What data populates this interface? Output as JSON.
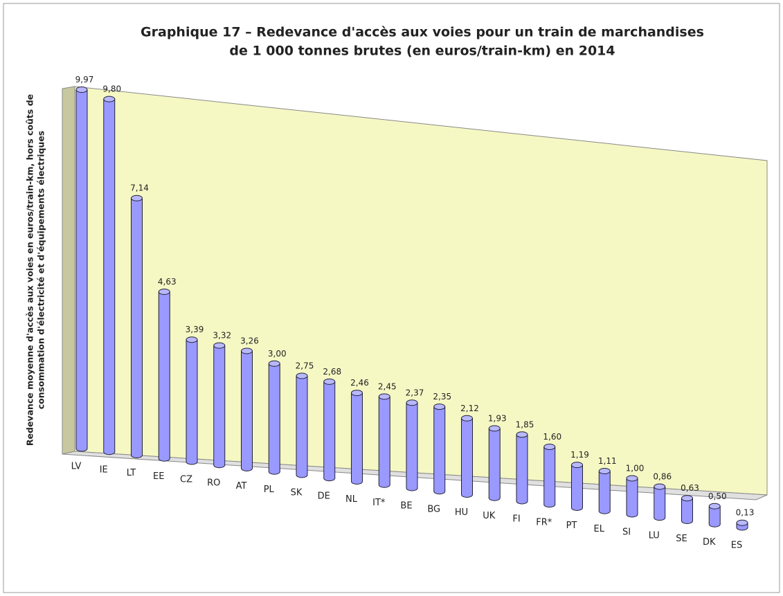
{
  "chart_data": {
    "type": "bar3d",
    "title": [
      "Graphique 17 – Redevance d'accès aux voies pour un train de marchandises",
      "de 1 000 tonnes brutes (en euros/train-km) en 2014"
    ],
    "y_label": [
      "Redevance moyenne d'accès aux voies en euros/train-km, hors coûts de",
      "consommation d'électricité et d'équipements électriques"
    ],
    "categories": [
      "LV",
      "IE",
      "LT",
      "EE",
      "CZ",
      "RO",
      "AT",
      "PL",
      "SK",
      "DE",
      "NL",
      "IT*",
      "BE",
      "BG",
      "HU",
      "UK",
      "FI",
      "FR*",
      "PT",
      "EL",
      "SI",
      "LU",
      "SE",
      "DK",
      "ES"
    ],
    "values": [
      9.97,
      9.8,
      7.14,
      4.63,
      3.39,
      3.32,
      3.26,
      3.0,
      2.75,
      2.68,
      2.46,
      2.45,
      2.37,
      2.35,
      2.12,
      1.93,
      1.85,
      1.6,
      1.19,
      1.11,
      1.0,
      0.86,
      0.63,
      0.5,
      0.13
    ],
    "value_labels": [
      "9,97",
      "9,80",
      "7,14",
      "4,63",
      "3,39",
      "3,32",
      "3,26",
      "3,00",
      "2,75",
      "2,68",
      "2,46",
      "2,45",
      "2,37",
      "2,35",
      "2,12",
      "1,93",
      "1,85",
      "1,60",
      "1,19",
      "1,11",
      "1,00",
      "0,86",
      "0,63",
      "0,50",
      "0,13"
    ],
    "color": "#9999ff"
  }
}
